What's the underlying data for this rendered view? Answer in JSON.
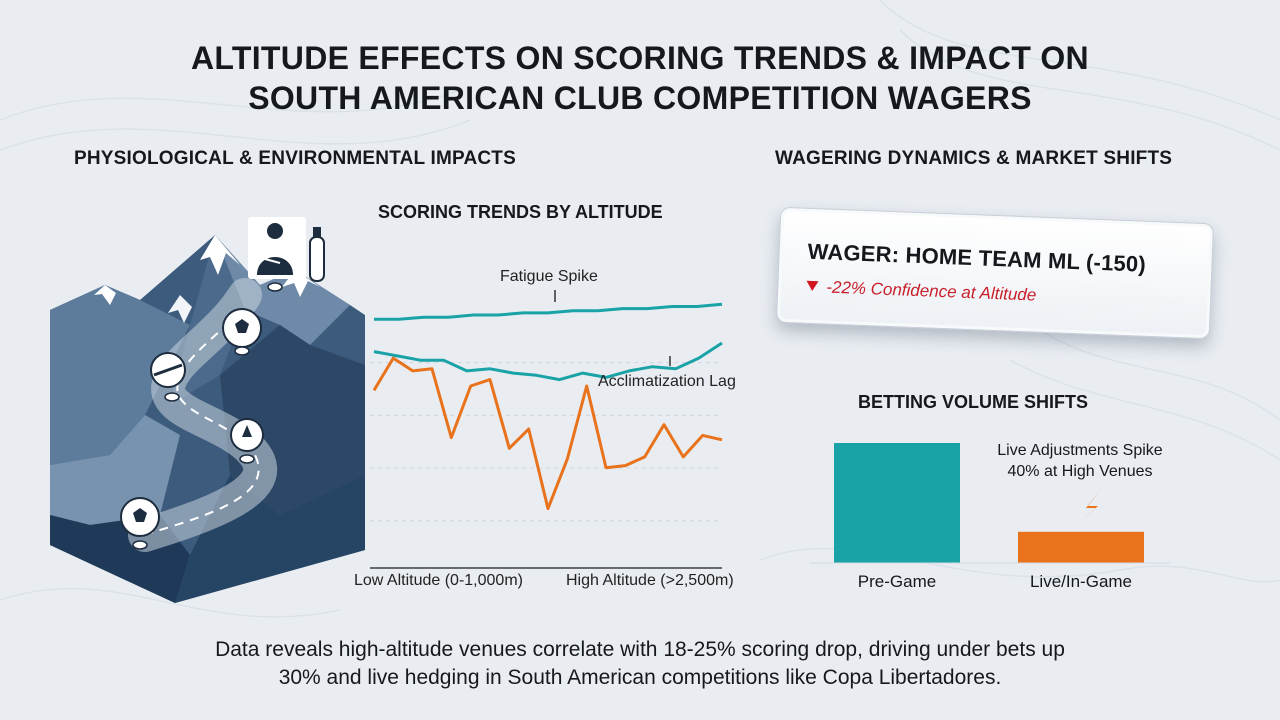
{
  "title_line1": "ALTITUDE EFFECTS ON SCORING TRENDS & IMPACT ON",
  "title_line2": "SOUTH AMERICAN CLUB COMPETITION WAGERS",
  "left_heading": "PHYSIOLOGICAL & ENVIRONMENTAL IMPACTS",
  "right_heading": "WAGERING DYNAMICS & MARKET SHIFTS",
  "wager_card": {
    "main": "WAGER: HOME TEAM ML (-150)",
    "sub": "-22% Confidence at Altitude",
    "down_color": "#d0161f"
  },
  "volume_title": "BETTING VOLUME SHIFTS",
  "volume_note_line1": "Live Adjustments Spike",
  "volume_note_line2": "40% at High Venues",
  "summary_line1": "Data reveals high-altitude venues correlate with 18-25% scoring drop, driving under bets up",
  "summary_line2": "30% and live hedging in South American competitions like Copa Libertadores.",
  "icons": [
    "mountain-icon",
    "player-icon",
    "oxygen-tank-icon",
    "soccer-ball-icon",
    "lightning-icon"
  ],
  "colors": {
    "teal": "#1aa3a6",
    "orange": "#e9731c",
    "mountain_dark": "#33506f",
    "alert_red": "#c81e2a"
  },
  "chart_data": [
    {
      "type": "line",
      "title": "SCORING TRENDS BY ALTITUDE",
      "x_tick_labels": [
        "Low Altitude (0-1,000m)",
        "High Altitude (>2,500m)"
      ],
      "annotations": [
        "Fatigue Spike",
        "Acclimatization Lag"
      ],
      "y_range": [
        0,
        100
      ],
      "grid": "horizontal-dashed",
      "series": [
        {
          "color": "#1aa3a6",
          "values": [
            91,
            91,
            92,
            92,
            93,
            93,
            94,
            94,
            95,
            95,
            96,
            96,
            97,
            97,
            98
          ]
        },
        {
          "color": "#1aa3a6",
          "values": [
            76,
            74,
            72,
            72,
            67,
            68,
            66,
            65,
            63,
            66,
            64,
            67,
            69,
            68,
            73,
            80
          ]
        },
        {
          "color": "#e9731c",
          "values": [
            58,
            73,
            67,
            68,
            36,
            60,
            63,
            31,
            40,
            3,
            26,
            60,
            22,
            23,
            27,
            42,
            27,
            37,
            35
          ]
        }
      ]
    },
    {
      "type": "bar",
      "title": "BETTING VOLUME SHIFTS",
      "categories": [
        "Pre-Game",
        "Live/In-Game"
      ],
      "values": [
        100,
        26
      ],
      "colors": [
        "#1aa3a6",
        "#e9731c"
      ],
      "ylim": [
        0,
        100
      ]
    }
  ]
}
